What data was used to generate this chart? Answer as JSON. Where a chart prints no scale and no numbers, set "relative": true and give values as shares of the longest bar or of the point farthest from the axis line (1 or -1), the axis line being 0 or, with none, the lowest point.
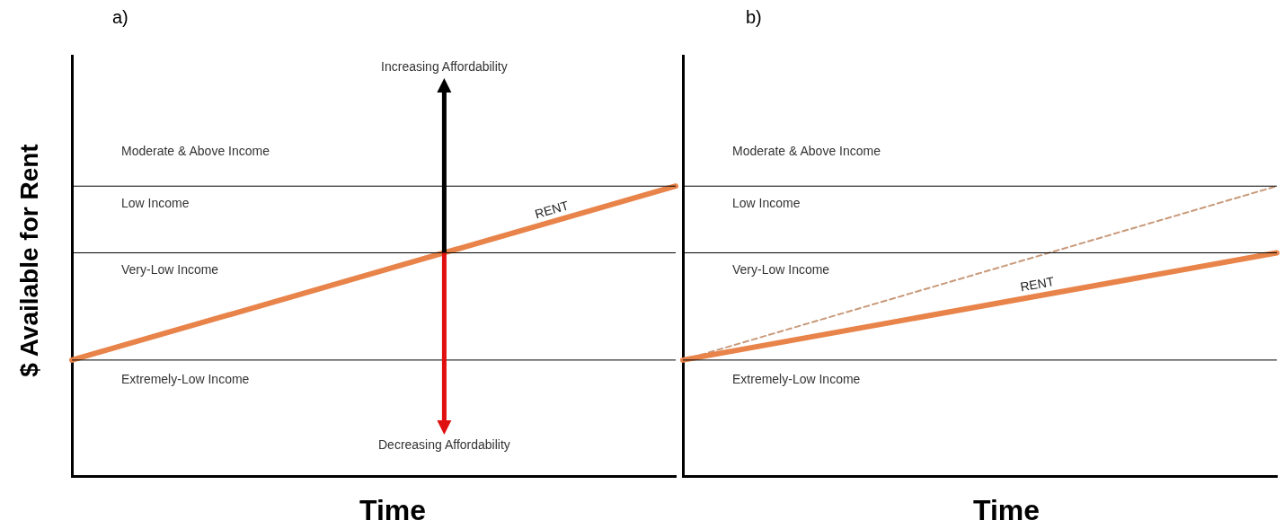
{
  "chart_data": [
    {
      "type": "line",
      "title": "a)",
      "xlabel": "Time",
      "ylabel": "$ Available for Rent",
      "relative": true,
      "tick_labels": false,
      "categories": [
        null,
        null
      ],
      "series": [
        {
          "name": "RENT",
          "color": "#e8834a",
          "line_style": "solid",
          "values": [
            0.4,
            1
          ]
        }
      ],
      "ref_lines": [
        {
          "axis": "y",
          "value": 1,
          "color": "#000000"
        },
        {
          "axis": "y",
          "value": 0.77,
          "color": "#000000"
        },
        {
          "axis": "y",
          "value": 0.4,
          "color": "#000000"
        }
      ],
      "annotations": [
        "Increasing Affordability",
        "Moderate & Above Income",
        "Low Income",
        "Very-Low Income",
        "Extremely-Low Income",
        "Decreasing Affordability"
      ]
    },
    {
      "type": "line",
      "title": "b)",
      "xlabel": "Time",
      "relative": true,
      "tick_labels": false,
      "categories": [
        null,
        null
      ],
      "series": [
        {
          "name": "RENT",
          "color": "#e8834a",
          "line_style": "solid",
          "values": [
            0.4,
            0.77
          ]
        },
        {
          "color": "#c89a7a",
          "line_style": "dashed",
          "values": [
            0.4,
            1
          ]
        }
      ],
      "ref_lines": [
        {
          "axis": "y",
          "value": 1,
          "color": "#000000"
        },
        {
          "axis": "y",
          "value": 0.77,
          "color": "#000000"
        },
        {
          "axis": "y",
          "value": 0.4,
          "color": "#000000"
        }
      ],
      "annotations": [
        "Moderate & Above Income",
        "Low Income",
        "Very-Low Income",
        "Extremely-Low Income"
      ]
    }
  ]
}
